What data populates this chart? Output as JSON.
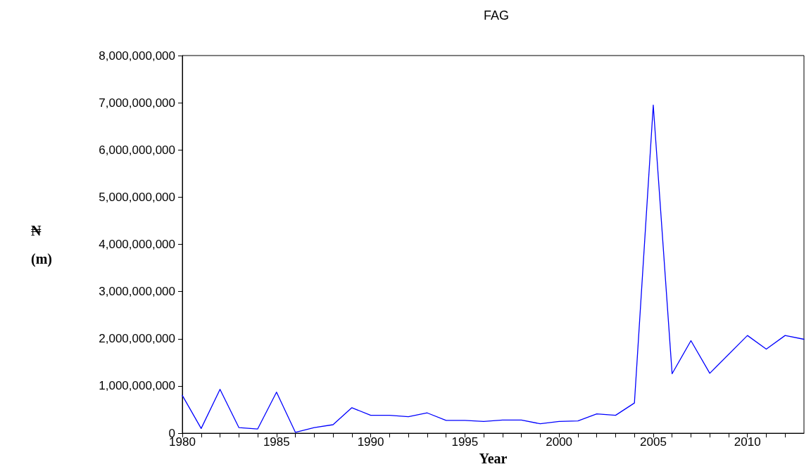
{
  "chart_data": {
    "type": "line",
    "title": "FAG",
    "xlabel": "Year",
    "ylabel": "₦ (m)",
    "x": [
      1980,
      1981,
      1982,
      1983,
      1984,
      1985,
      1986,
      1987,
      1988,
      1989,
      1990,
      1991,
      1992,
      1993,
      1994,
      1995,
      1996,
      1997,
      1998,
      1999,
      2000,
      2001,
      2002,
      2003,
      2004,
      2005,
      2006,
      2007,
      2008,
      2009,
      2010,
      2011,
      2012,
      2013
    ],
    "series": [
      {
        "color": "#0000ff",
        "values": [
          800000000,
          100000000,
          930000000,
          120000000,
          90000000,
          870000000,
          20000000,
          120000000,
          180000000,
          540000000,
          380000000,
          380000000,
          350000000,
          430000000,
          270000000,
          270000000,
          250000000,
          280000000,
          280000000,
          200000000,
          250000000,
          260000000,
          410000000,
          380000000,
          640000000,
          6950000000,
          1260000000,
          1960000000,
          1270000000,
          1670000000,
          2070000000,
          1780000000,
          2070000000,
          1990000000
        ]
      }
    ],
    "xlim": [
      1980,
      2013
    ],
    "xticks": [
      1980,
      {
        "value": 1981,
        "label": null
      },
      {
        "value": 1982,
        "label": null
      },
      {
        "value": 1983,
        "label": null
      },
      {
        "value": 1984,
        "label": null
      },
      1985,
      {
        "value": 1986,
        "label": null
      },
      {
        "value": 1987,
        "label": null
      },
      {
        "value": 1988,
        "label": null
      },
      {
        "value": 1989,
        "label": null
      },
      1990,
      {
        "value": 1991,
        "label": null
      },
      {
        "value": 1992,
        "label": null
      },
      {
        "value": 1993,
        "label": null
      },
      {
        "value": 1994,
        "label": null
      },
      1995,
      {
        "value": 1996,
        "label": null
      },
      {
        "value": 1997,
        "label": null
      },
      {
        "value": 1998,
        "label": null
      },
      {
        "value": 1999,
        "label": null
      },
      2000,
      {
        "value": 2001,
        "label": null
      },
      {
        "value": 2002,
        "label": null
      },
      {
        "value": 2003,
        "label": null
      },
      {
        "value": 2004,
        "label": null
      },
      2005,
      {
        "value": 2006,
        "label": null
      },
      {
        "value": 2007,
        "label": null
      },
      {
        "value": 2008,
        "label": null
      },
      {
        "value": 2009,
        "label": null
      },
      2010,
      {
        "value": 2011,
        "label": null
      },
      {
        "value": 2012,
        "label": null
      }
    ],
    "ylim": [
      0,
      8000000000
    ],
    "yticks": [
      0,
      {
        "value": 1000000000,
        "label": "1,000,000,000"
      },
      {
        "value": 2000000000,
        "label": "2,000,000,000"
      },
      {
        "value": 3000000000,
        "label": "3,000,000,000"
      },
      {
        "value": 4000000000,
        "label": "4,000,000,000"
      },
      {
        "value": 5000000000,
        "label": "5,000,000,000"
      },
      {
        "value": 6000000000,
        "label": "6,000,000,000"
      },
      {
        "value": 7000000000,
        "label": "7,000,000,000"
      },
      {
        "value": 8000000000,
        "label": "8,000,000,000"
      }
    ],
    "grid": false,
    "marker": "none",
    "line_style": "solid"
  }
}
